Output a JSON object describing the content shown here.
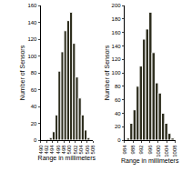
{
  "chart_data": [
    {
      "type": "histogram",
      "x_label": "Range in millimeters",
      "y_label": "Number of Sensors",
      "bins": [
        492,
        493,
        494,
        495,
        496,
        497,
        498,
        499,
        500,
        501,
        502,
        503,
        504,
        505,
        506,
        507
      ],
      "values": [
        1,
        3,
        10,
        30,
        82,
        105,
        130,
        142,
        152,
        115,
        75,
        50,
        30,
        12,
        3
      ],
      "color": "#2e2e1e",
      "xlim": [
        490,
        508
      ],
      "xticks": [
        490,
        492,
        494,
        496,
        498,
        500,
        502,
        504,
        506,
        508
      ],
      "ylim": [
        0,
        160
      ],
      "yticks": [
        0,
        20,
        40,
        60,
        80,
        100,
        120,
        140,
        160
      ]
    },
    {
      "type": "histogram",
      "x_label": "Range in millimeters",
      "y_label": "Number of Sensors",
      "bins": [
        985,
        986.5,
        988,
        989.5,
        991,
        992.5,
        994,
        995.5,
        997,
        998.5,
        1000,
        1001.5,
        1003,
        1004.5,
        1006,
        1007.5
      ],
      "values": [
        3,
        25,
        45,
        80,
        110,
        150,
        165,
        190,
        130,
        85,
        70,
        40,
        25,
        10,
        3
      ],
      "color": "#2e2e1e",
      "xlim": [
        984,
        1008
      ],
      "xticks": [
        984,
        988,
        992,
        996,
        1000,
        1004,
        1008
      ],
      "ylim": [
        0,
        200
      ],
      "yticks": [
        0,
        20,
        40,
        60,
        80,
        100,
        120,
        140,
        160,
        180,
        200
      ]
    }
  ]
}
